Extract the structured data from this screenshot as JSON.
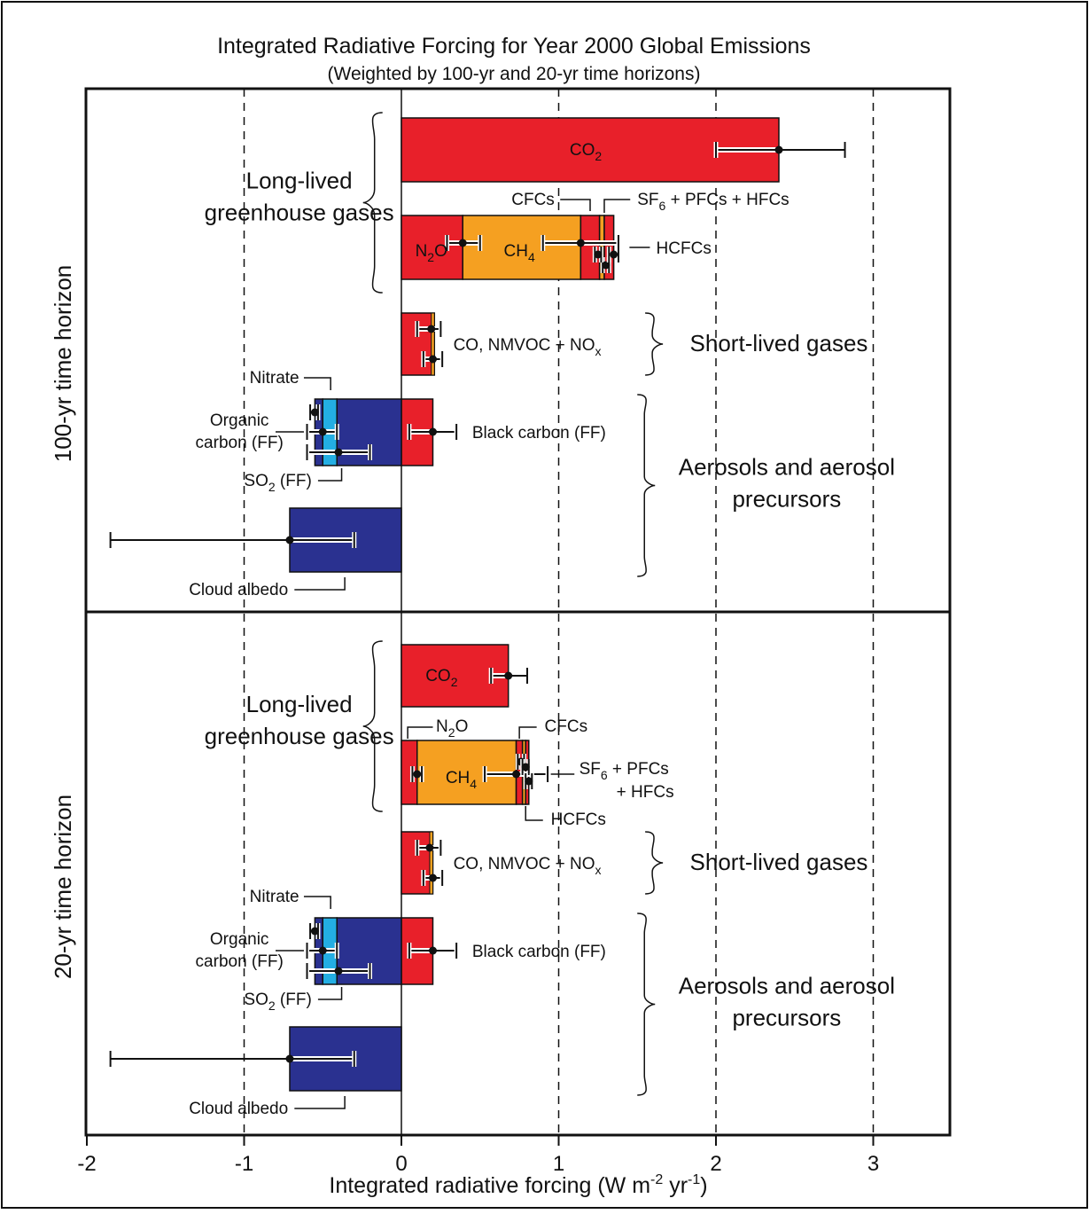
{
  "colors": {
    "red": "#e8202a",
    "orange": "#f5a021",
    "darkblue": "#2a3190",
    "lightblue": "#23aee3",
    "black": "#111111"
  },
  "chart_data": {
    "type": "bar",
    "orientation": "horizontal",
    "title": "Integrated Radiative Forcing for Year 2000 Global Emissions",
    "subtitle": "(Weighted by 100-yr and 20-yr time horizons)",
    "xlabel": "Integrated radiative forcing (W m",
    "xlabel_sup1": "-2",
    "xlabel_mid": " yr",
    "xlabel_sup2": "-1",
    "xlabel_end": ")",
    "xlim": [
      -2,
      3.5
    ],
    "xticks": [
      -2,
      -1,
      0,
      1,
      2,
      3
    ],
    "dashed_gridlines": [
      -1,
      1,
      2,
      3
    ],
    "panels": [
      {
        "side_label": "100-yr time horizon",
        "group_labels": {
          "long_lived_1": "Long-lived",
          "long_lived_2": "greenhouse gases",
          "short_lived": "Short-lived gases",
          "aerosols_1": "Aerosols and aerosol",
          "aerosols_2": "precursors"
        },
        "bars": [
          {
            "name": "CO2",
            "segments": [
              {
                "value": 2.4,
                "color": "red"
              }
            ],
            "error": {
              "best": 2.4,
              "inner": [
                2.0,
                2.4
              ],
              "outer": [
                2.4,
                2.82
              ]
            }
          },
          {
            "name": "N2O",
            "segments": [
              {
                "value": 0.39,
                "color": "red"
              }
            ],
            "error": {
              "best": 0.39,
              "inner": [
                0.29,
                0.5
              ],
              "outer": null
            }
          },
          {
            "name": "CH4",
            "segments": [
              {
                "value": 0.75,
                "color": "orange"
              }
            ],
            "error": {
              "best": 1.14,
              "inner": [
                0.9,
                1.38
              ],
              "outer": null
            }
          },
          {
            "name": "CFCs",
            "segments": [
              {
                "value": 0.12,
                "color": "red"
              }
            ],
            "error": null
          },
          {
            "name": "HCFCs",
            "segments": [
              {
                "value": 0.03,
                "color": "orange"
              }
            ],
            "error": {
              "best": 1.3,
              "inner": [
                1.28,
                1.32
              ],
              "outer": null
            }
          },
          {
            "name": "SF6 + PFCs + HFCs",
            "segments": [
              {
                "value": 0.06,
                "color": "red"
              }
            ],
            "error": {
              "best": 1.35,
              "inner": [
                1.32,
                1.38
              ],
              "outer": null
            }
          },
          {
            "name": "CO, NMVOC + NOx",
            "value": 0.21,
            "error": {
              "best": 0.19,
              "inner": [
                0.12,
                0.25
              ],
              "outer": null
            }
          },
          {
            "name": "Black carbon (FF)",
            "value": 0.2,
            "error": {
              "best": 0.2,
              "inner": [
                0.05,
                0.35
              ],
              "outer": null
            }
          },
          {
            "name": "Nitrate",
            "value": -0.05,
            "error": {
              "best": -0.55,
              "inner": [
                -0.58,
                -0.53
              ],
              "outer": null
            }
          },
          {
            "name": "Organic carbon (FF)",
            "value": -0.09,
            "error": {
              "best": -0.5,
              "inner": [
                -0.6,
                -0.41
              ],
              "outer": null
            }
          },
          {
            "name": "SO2 (FF)",
            "value": -0.41,
            "error": {
              "best": -0.4,
              "inner": [
                -0.6,
                -0.2
              ],
              "outer": null
            }
          },
          {
            "name": "Cloud albedo",
            "value": -0.71,
            "error": {
              "best": -0.71,
              "inner": [
                -0.71,
                -0.3
              ],
              "outer": [
                -1.85,
                -0.71
              ]
            }
          }
        ]
      },
      {
        "side_label": "20-yr time horizon",
        "group_labels": {
          "long_lived_1": "Long-lived",
          "long_lived_2": "greenhouse gases",
          "short_lived": "Short-lived gases",
          "aerosols_1": "Aerosols and aerosol",
          "aerosols_2": "precursors"
        },
        "bars": [
          {
            "name": "CO2",
            "segments": [
              {
                "value": 0.68,
                "color": "red"
              }
            ],
            "error": {
              "best": 0.68,
              "inner": [
                0.57,
                0.68
              ],
              "outer": [
                0.68,
                0.8
              ]
            }
          },
          {
            "name": "N2O",
            "segments": [
              {
                "value": 0.1,
                "color": "red"
              }
            ],
            "error": {
              "best": 0.1,
              "inner": [
                0.07,
                0.13
              ],
              "outer": null
            }
          },
          {
            "name": "CH4",
            "segments": [
              {
                "value": 0.63,
                "color": "orange"
              }
            ],
            "error": {
              "best": 0.73,
              "inner": [
                0.53,
                0.93
              ],
              "outer": null
            }
          },
          {
            "name": "CFCs",
            "segments": [
              {
                "value": 0.04,
                "color": "red"
              }
            ],
            "error": {
              "best": 0.76,
              "inner": [
                0.74,
                0.78
              ],
              "outer": null
            }
          },
          {
            "name": "HCFCs",
            "segments": [
              {
                "value": 0.02,
                "color": "orange"
              }
            ],
            "error": {
              "best": 0.79,
              "inner": [
                0.77,
                0.81
              ],
              "outer": null
            }
          },
          {
            "name": "SF6 + PFCs + HFCs",
            "segments": [
              {
                "value": 0.02,
                "color": "red"
              }
            ],
            "error": {
              "best": 0.81,
              "inner": [
                0.79,
                0.83
              ],
              "outer": null
            }
          },
          {
            "name": "CO, NMVOC + NOx",
            "value": 0.2,
            "error": {
              "best": 0.18,
              "inner": [
                0.12,
                0.25
              ],
              "outer": null
            }
          },
          {
            "name": "Black carbon (FF)",
            "value": 0.2,
            "error": {
              "best": 0.2,
              "inner": [
                0.05,
                0.35
              ],
              "outer": null
            }
          },
          {
            "name": "Nitrate",
            "value": -0.05,
            "error": {
              "best": -0.55,
              "inner": [
                -0.58,
                -0.53
              ],
              "outer": null
            }
          },
          {
            "name": "Organic carbon (FF)",
            "value": -0.09,
            "error": {
              "best": -0.5,
              "inner": [
                -0.6,
                -0.41
              ],
              "outer": null
            }
          },
          {
            "name": "SO2 (FF)",
            "value": -0.41,
            "error": {
              "best": -0.4,
              "inner": [
                -0.6,
                -0.2
              ],
              "outer": null
            }
          },
          {
            "name": "Cloud albedo",
            "value": -0.71,
            "error": {
              "best": -0.71,
              "inner": [
                -0.71,
                -0.3
              ],
              "outer": [
                -1.85,
                -0.71
              ]
            }
          }
        ]
      }
    ]
  }
}
